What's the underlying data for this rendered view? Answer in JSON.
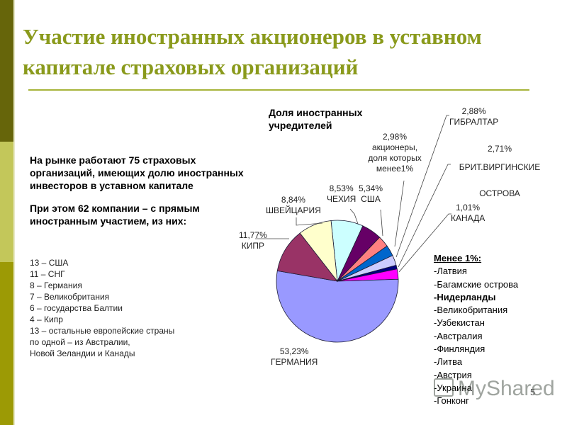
{
  "slide": {
    "title": "Участие иностранных акционеров в уставном капитале страховых организаций",
    "page_number": "5",
    "theme_colors": {
      "sidebar_dark": "#66650a",
      "sidebar_light": "#c3c75a",
      "sidebar_mid": "#9c9a05",
      "title": "#8a9a1c"
    }
  },
  "intro": {
    "paragraph1": "На рынке работают 75 страховых организаций, имеющих долю иностранных инвесторов в уставном капитале",
    "paragraph2": "При этом 62 компании – с прямым иностранным участием, из них:"
  },
  "breakdown": [
    "13 – США",
    "11 – СНГ",
    "8 – Германия",
    "7 – Великобритания",
    "6 – государства Балтии",
    "4 – Кипр",
    "13 – остальные европейские страны",
    "по одной – из Австралии,",
    "Новой Зеландии и Канады"
  ],
  "minor": {
    "header": "Менее 1%:",
    "items": [
      "-Латвия",
      "-Багамские острова",
      "-Нидерланды",
      "-Великобритания",
      "-Узбекистан",
      "-Австралия",
      "-Финляндия",
      "-Литва",
      "-Австрия",
      "-Украина",
      "-Гонконг"
    ]
  },
  "watermark": "MyShared",
  "chart_data": {
    "type": "pie",
    "title": "Доля иностранных учредителей",
    "unit": "%",
    "start_angle_deg": -6,
    "direction": "clockwise",
    "center": [
      476,
      397
    ],
    "radius": 86,
    "slices": [
      {
        "label": "ЧЕХИЯ",
        "value": 8.53,
        "value_text": "8,53%",
        "color": "#ccffff"
      },
      {
        "label": "США",
        "value": 5.34,
        "value_text": "5,34%",
        "color": "#660066"
      },
      {
        "label": "акционеры, доля которых менее1%",
        "value": 2.98,
        "value_text": "2,98%",
        "color": "#ff8080"
      },
      {
        "label": "ГИБРАЛТАР",
        "value": 2.88,
        "value_text": "2,88%",
        "color": "#0066cc"
      },
      {
        "label": "БРИТ.ВИРГИНСКИЕ ОСТРОВА",
        "value": 2.71,
        "value_text": "2,71%",
        "color": "#ccccff"
      },
      {
        "label": "КАНАДА",
        "value": 1.01,
        "value_text": "1,01%",
        "color": "#000080"
      },
      {
        "label": "",
        "value": 2.71,
        "value_text": "",
        "color": "#ff00ff"
      },
      {
        "label": "ГЕРМАНИЯ",
        "value": 53.23,
        "value_text": "53,23%",
        "color": "#9999ff"
      },
      {
        "label": "КИПР",
        "value": 11.77,
        "value_text": "11,77%",
        "color": "#993366"
      },
      {
        "label": "ШВЕЙЦАРИЯ",
        "value": 8.84,
        "value_text": "8,84%",
        "color": "#ffffcc"
      }
    ]
  }
}
